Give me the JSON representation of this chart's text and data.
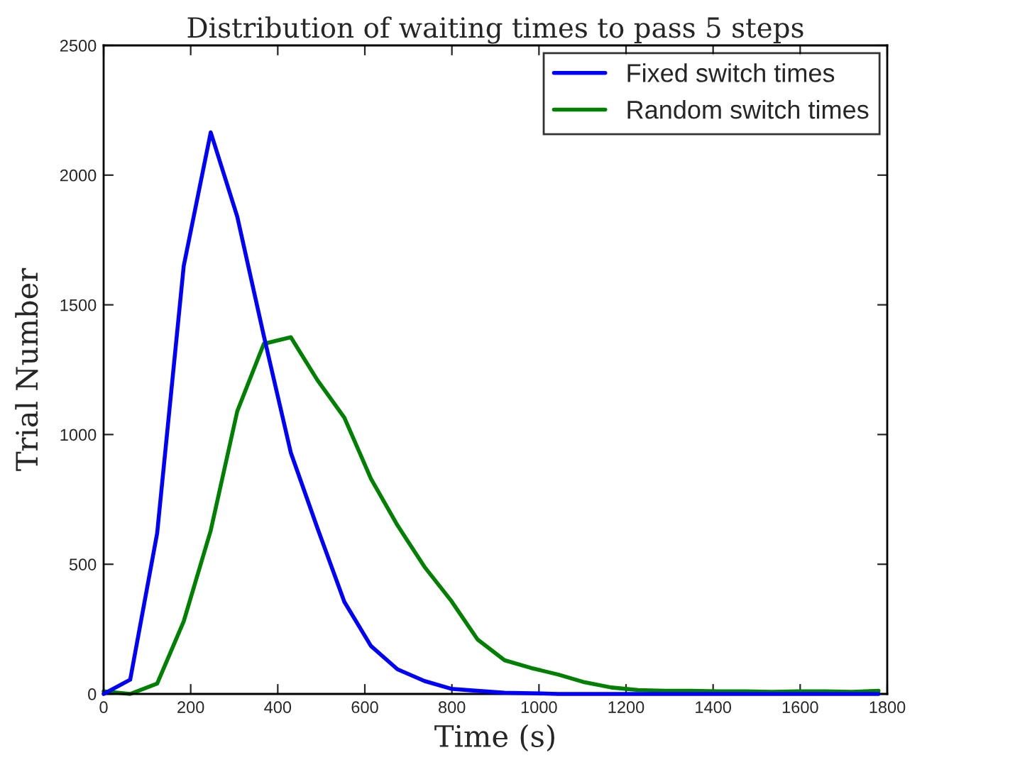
{
  "chart_data": {
    "type": "line",
    "title": "Distribution of waiting times to pass 5 steps",
    "xlabel": "Time (s)",
    "ylabel": "Trial Number",
    "x": [
      0,
      61,
      123,
      184,
      246,
      307,
      368,
      430,
      491,
      553,
      614,
      675,
      737,
      798,
      859,
      921,
      982,
      1044,
      1105,
      1166,
      1228,
      1289,
      1350,
      1412,
      1473,
      1535,
      1596,
      1657,
      1719,
      1780
    ],
    "series": [
      {
        "name": "Fixed switch times",
        "color": "#0000ff",
        "values": [
          0,
          55,
          620,
          1650,
          2165,
          1840,
          1380,
          930,
          640,
          355,
          185,
          95,
          50,
          20,
          12,
          5,
          3,
          0,
          0,
          0,
          0,
          0,
          0,
          0,
          0,
          0,
          0,
          0,
          0,
          0
        ]
      },
      {
        "name": "Random switch times",
        "color": "#008000",
        "values": [
          10,
          0,
          40,
          280,
          630,
          1090,
          1350,
          1375,
          1210,
          1065,
          830,
          650,
          490,
          360,
          210,
          130,
          100,
          75,
          45,
          25,
          15,
          12,
          12,
          10,
          10,
          8,
          10,
          10,
          8,
          12
        ]
      }
    ],
    "xlim": [
      0,
      1800
    ],
    "ylim": [
      0,
      2500
    ],
    "xticks": [
      0,
      200,
      400,
      600,
      800,
      1000,
      1200,
      1400,
      1600,
      1800
    ],
    "yticks": [
      0,
      500,
      1000,
      1500,
      2000,
      2500
    ],
    "grid": false,
    "legend": "top right",
    "marker": "none",
    "line_style": "solid"
  }
}
